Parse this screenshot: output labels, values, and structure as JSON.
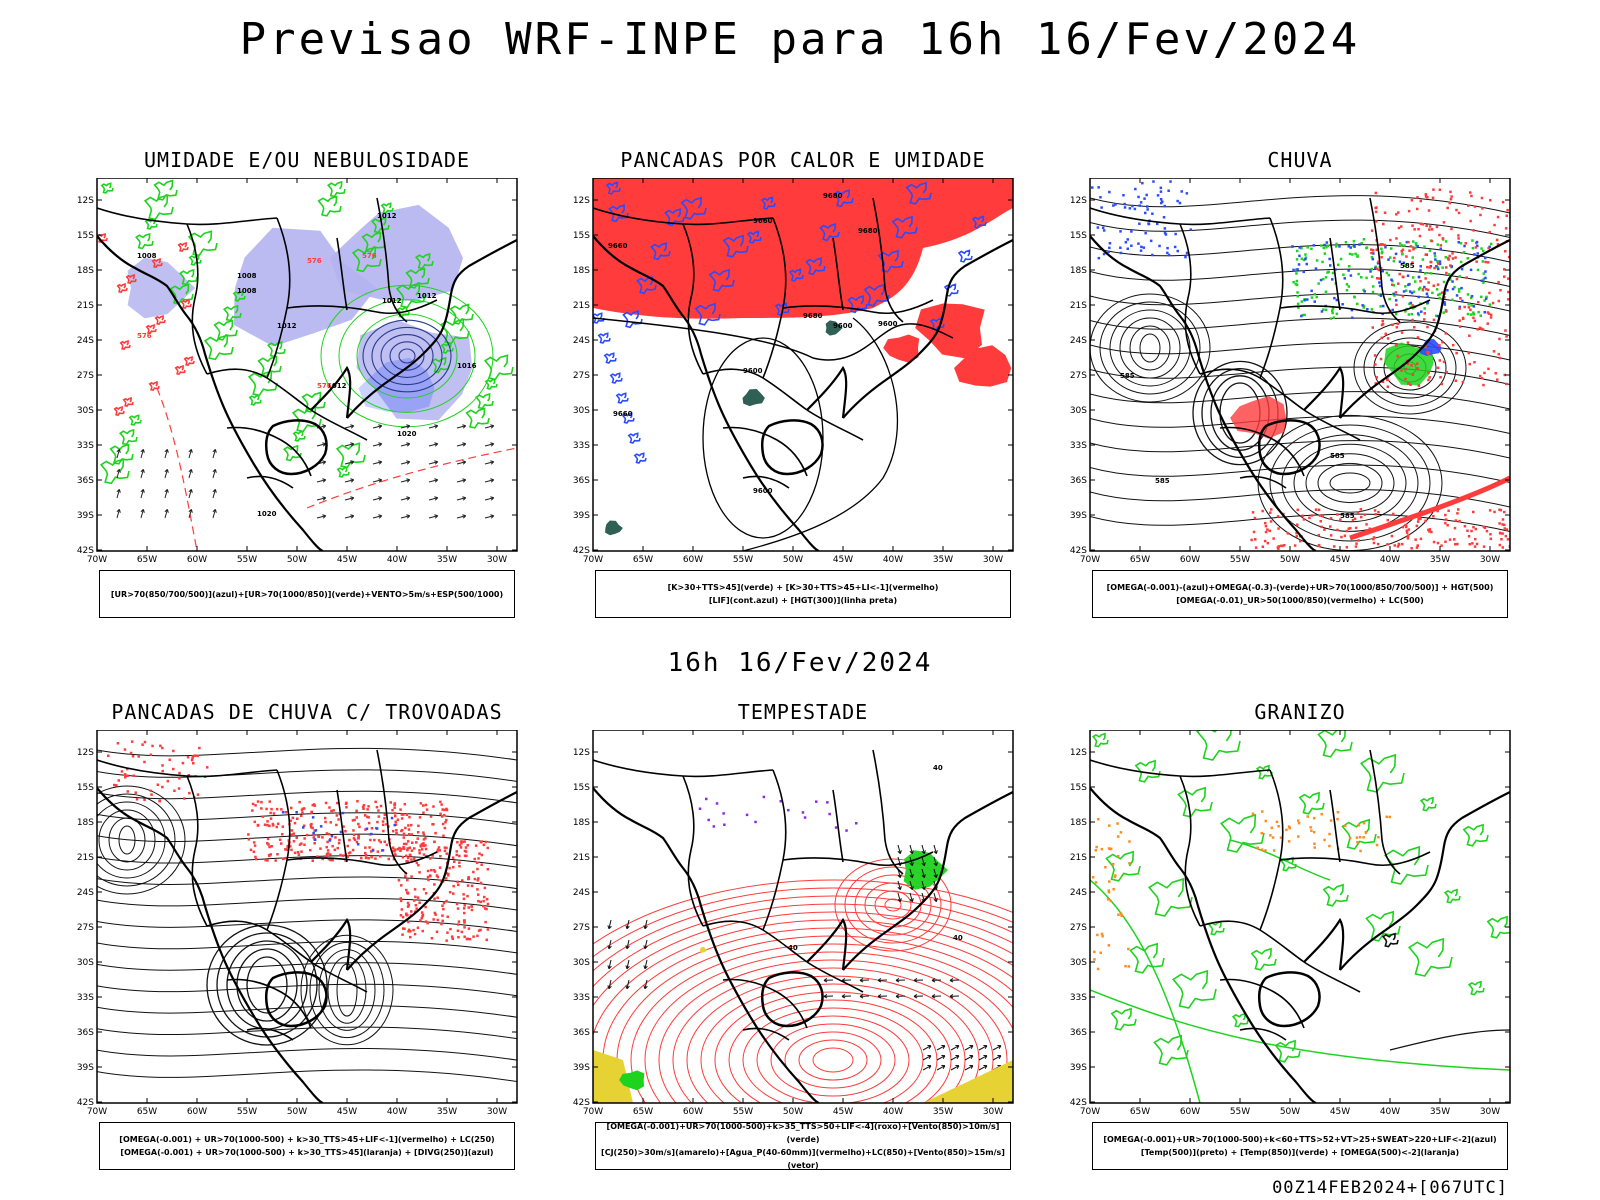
{
  "header": {
    "title": "Previsao WRF-INPE  para 16h 16/Fev/2024"
  },
  "mid_label": "16h 16/Fev/2024",
  "footer": "00Z14FEB2024+[067UTC]",
  "axes": {
    "lat_ticks": [
      "12S",
      "15S",
      "18S",
      "21S",
      "24S",
      "27S",
      "30S",
      "33S",
      "36S",
      "39S",
      "42S"
    ],
    "lon_ticks": [
      "70W",
      "65W",
      "60W",
      "55W",
      "50W",
      "45W",
      "40W",
      "35W",
      "30W"
    ]
  },
  "colors": {
    "red": "#ff3b3b",
    "green": "#1ed31e",
    "blue": "#2a4cff",
    "lavender": "#b4b4f0",
    "dark_green": "#2f5f55",
    "yellow": "#e6d232",
    "orange": "#ff8c1e"
  },
  "panels": [
    {
      "title": "UMIDADE E/OU NEBULOSIDADE",
      "legend": [
        "[UR>70(850/700/500)](azul)+[UR>70(1000/850)](verde)+VENTO>5m/s+ESP(500/1000)"
      ],
      "labels": [
        "1012",
        "1008",
        "1008",
        "1008",
        "1012",
        "1012",
        "1012",
        "1016",
        "1012",
        "1020",
        "1020",
        "576",
        "576",
        "576",
        "576"
      ]
    },
    {
      "title": "PANCADAS POR CALOR E UMIDADE",
      "legend": [
        "[K>30+TTS>45](verde) + [K>30+TTS>45+LI<-1](vermelho)",
        "[LIF](cont.azul) + [HGT(300)](linha preta)"
      ],
      "labels": [
        "9660",
        "9680",
        "9680",
        "9660",
        "9680",
        "9600",
        "9600",
        "9600",
        "9660",
        "9600"
      ]
    },
    {
      "title": "CHUVA",
      "legend": [
        "[OMEGA(-0.001)-(azul)+OMEGA(-0.3)-(verde)+UR>70(1000/850/700/500)] + HGT(500)",
        "[OMEGA(-0.01)_UR>50(1000/850)(vermelho) + LC(500)"
      ],
      "labels": [
        "585",
        "585",
        "585",
        "585",
        "585"
      ]
    },
    {
      "title": "PANCADAS DE CHUVA C/ TROVOADAS",
      "legend": [
        "[OMEGA(-0.001) + UR>70(1000-500) + k>30_TTS>45+LIF<-1](vermelho) + LC(250)",
        "[OMEGA(-0.001) + UR>70(1000-500) + k>30_TTS>45](laranja) + [DIVG(250)](azul)"
      ],
      "labels": []
    },
    {
      "title": "TEMPESTADE",
      "legend": [
        "[OMEGA(-0.001)+UR>70(1000-500)+k>35_TTS>50+LIF<-4](roxo)+[Vento(850)>10m/s](verde)",
        "[CJ(250)>30m/s](amarelo)+[Agua_P(40-60mm)](vermelho)+LC(850)+[Vento(850)>15m/s](vetor)"
      ],
      "labels": [
        "40",
        "40",
        "40"
      ]
    },
    {
      "title": "GRANIZO",
      "legend": [
        "[OMEGA(-0.001)+UR>70(1000-500)+k<60+TTS>52+VT>25+SWEAT>220+LIF<-2](azul)",
        "[Temp(500)](preto) + [Temp(850)](verde) + [OMEGA(500)<-2](laranja)"
      ],
      "labels": []
    }
  ]
}
